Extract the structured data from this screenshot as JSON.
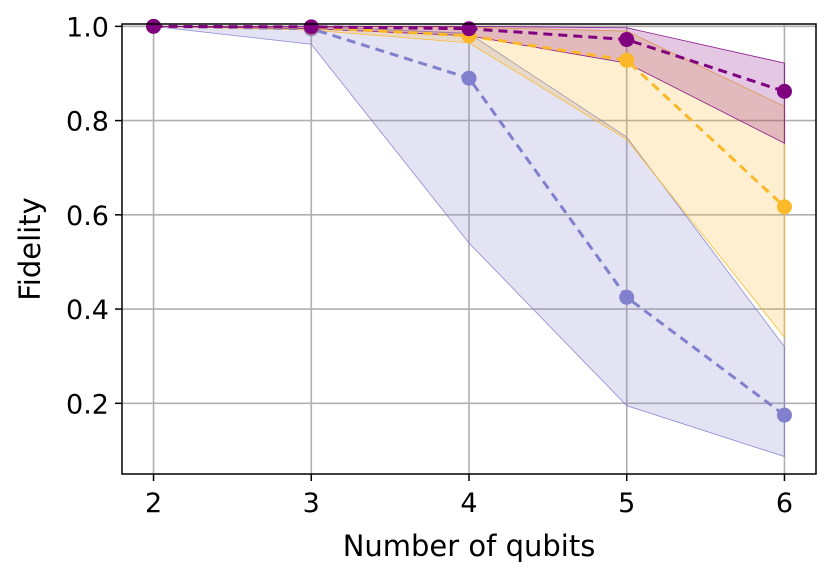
{
  "chart_data": {
    "type": "line",
    "title": "",
    "xlabel": "Number of qubits",
    "ylabel": "Fidelity",
    "x": [
      2,
      3,
      4,
      5,
      6
    ],
    "xticks": [
      2,
      3,
      4,
      5,
      6
    ],
    "yticks": [
      0.2,
      0.4,
      0.6,
      0.8,
      1.0
    ],
    "xlim": [
      1.8,
      6.2
    ],
    "ylim": [
      0.05,
      1.005
    ],
    "grid": true,
    "legend": "none",
    "series": [
      {
        "color": "#8080cc",
        "values": [
          1.0,
          0.995,
          0.89,
          0.425,
          0.175
        ],
        "band_lower": [
          1.0,
          0.962,
          0.54,
          0.195,
          0.087
        ],
        "band_upper": [
          1.0,
          1.0,
          0.985,
          0.765,
          0.32
        ]
      },
      {
        "color": "#fbb829",
        "values": [
          1.0,
          0.998,
          0.98,
          0.928,
          0.617
        ],
        "band_lower": [
          1.0,
          0.992,
          0.965,
          0.76,
          0.34
        ],
        "band_upper": [
          1.0,
          1.0,
          0.998,
          0.99,
          0.83
        ]
      },
      {
        "color": "#800080",
        "values": [
          1.0,
          0.999,
          0.995,
          0.972,
          0.862
        ],
        "band_lower": [
          1.0,
          0.995,
          0.98,
          0.922,
          0.752
        ],
        "band_upper": [
          1.0,
          1.0,
          1.0,
          0.997,
          0.922
        ]
      }
    ]
  }
}
